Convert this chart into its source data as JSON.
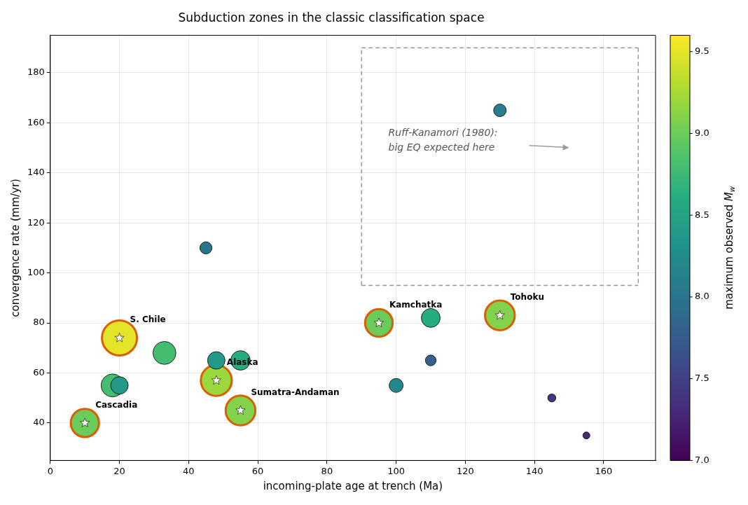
{
  "chart_data": {
    "type": "scatter",
    "title": "Subduction zones in the classic classification space",
    "xlabel": "incoming-plate age at trench (Ma)",
    "ylabel": "convergence rate (mm/yr)",
    "clabel": "maximum observed M$_{w}$",
    "xlim": [
      0,
      175
    ],
    "xticks": [
      0,
      20,
      40,
      60,
      80,
      100,
      120,
      140,
      160
    ],
    "ylim": [
      25,
      195
    ],
    "yticks": [
      40,
      60,
      80,
      100,
      120,
      140,
      160,
      180
    ],
    "clim": [
      7.0,
      9.6
    ],
    "cticks": [
      {
        "value": 7,
        "label": "7.0"
      },
      7.5,
      {
        "value": 8,
        "label": "8.0"
      },
      8.5,
      {
        "value": 9,
        "label": "9.0"
      },
      9.5
    ],
    "grid": true,
    "legend": false,
    "series": [
      {
        "type": "scatter",
        "color": "#000000",
        "marker": "circle",
        "x": [
          45,
          33,
          18,
          20,
          48,
          55,
          130,
          110,
          110,
          100,
          145,
          155
        ],
        "values": [
          110,
          68,
          55,
          55,
          65,
          65,
          165,
          82,
          65,
          55,
          50,
          35
        ],
        "cvalues": [
          8.0,
          8.8,
          8.8,
          8.4,
          8.4,
          8.6,
          8.1,
          8.6,
          7.8,
          8.2,
          7.4,
          7.3
        ],
        "sizes": [
          0.12,
          0.43,
          0.43,
          0.25,
          0.25,
          0.31,
          0.13,
          0.29,
          0.095,
          0.16,
          0.053,
          0.04
        ]
      },
      {
        "type": "scatter",
        "color": "#d95f02",
        "marker": "circle",
        "x": [
          10,
          20,
          48,
          55,
          95,
          130
        ],
        "values": [
          40,
          74,
          57,
          45,
          80,
          83
        ],
        "cvalues": [
          9.0,
          9.5,
          9.2,
          9.1,
          9.0,
          9.1
        ],
        "sizes": [
          0.65,
          1,
          0.78,
          0.72,
          0.62,
          0.72
        ]
      },
      {
        "type": "scatter",
        "color": "#ffffff",
        "marker": "star",
        "x": [
          10,
          20,
          48,
          55,
          95,
          130
        ],
        "values": [
          40,
          74,
          57,
          45,
          80,
          83
        ]
      },
      {
        "type": "line",
        "color": "#999999",
        "marker": "none",
        "line_style": "dashed",
        "x": [
          90,
          90,
          170,
          170
        ],
        "values": [
          95,
          190,
          190,
          95
        ]
      },
      {
        "type": "line",
        "color": "#969696",
        "marker": "none",
        "line_style": "dashed",
        "x": [
          90,
          170
        ],
        "values": [
          95,
          95
        ]
      }
    ],
    "annotations": [
      {
        "text": "Cascadia",
        "x": 10,
        "y": 40
      },
      {
        "text": "S. Chile",
        "x": 20,
        "y": 74
      },
      {
        "text": "Alaska",
        "x": 48,
        "y": 57
      },
      {
        "text": "Sumatra-Andaman",
        "x": 55,
        "y": 45
      },
      {
        "text": "Kamchatka",
        "x": 95,
        "y": 80
      },
      {
        "text": "Tohoku",
        "x": 130,
        "y": 83
      },
      "Ruff-Kanamori (1980):\nbig EQ expected here"
    ]
  }
}
